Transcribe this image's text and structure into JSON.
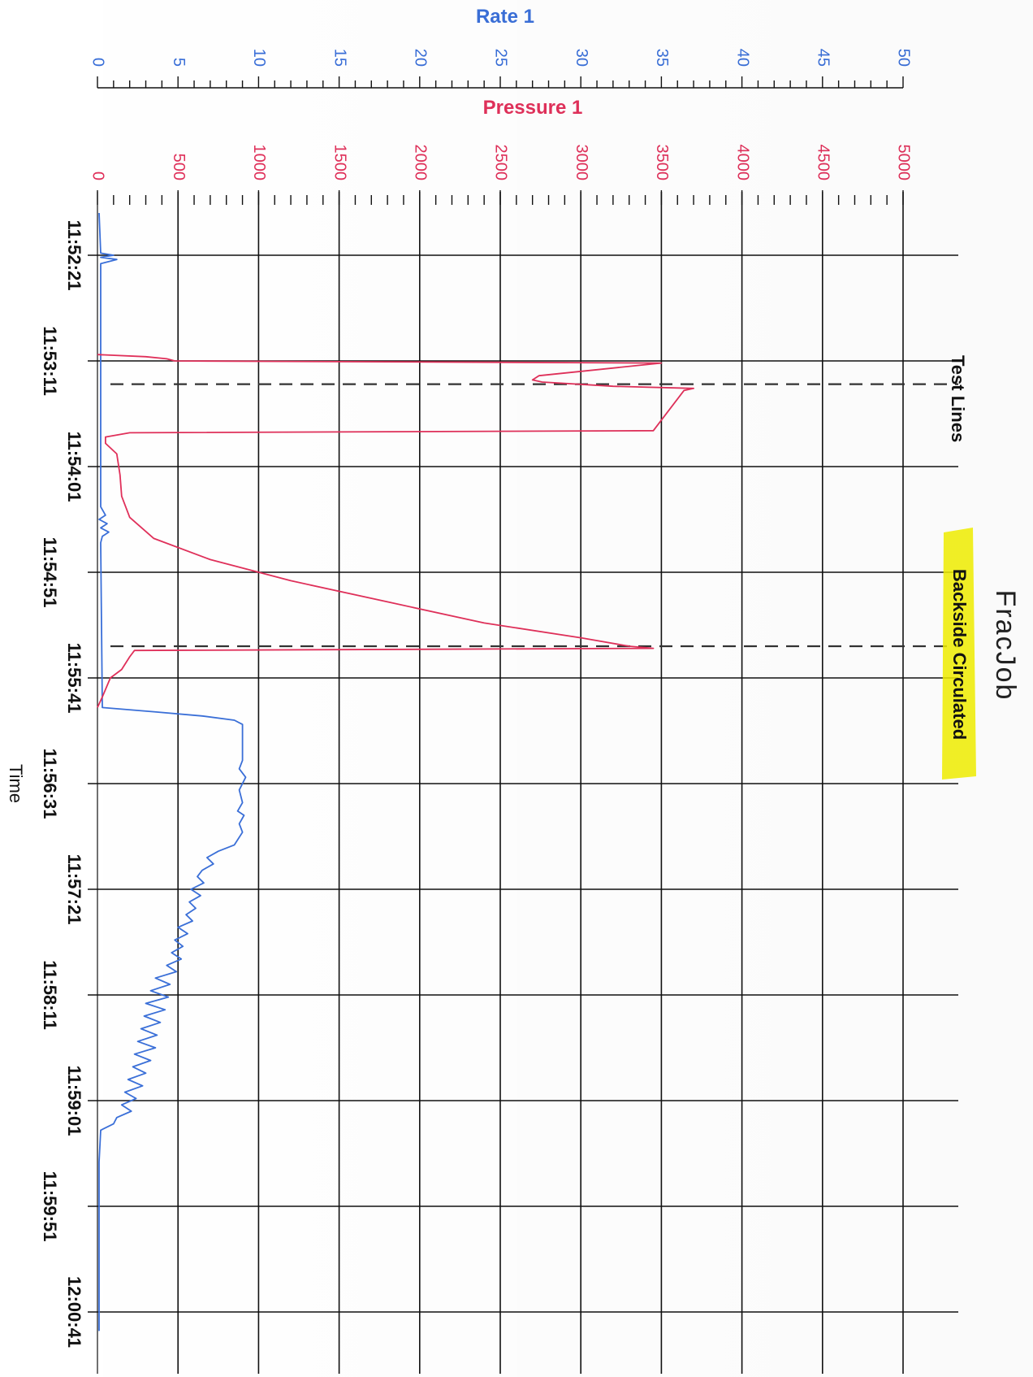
{
  "chart_data": {
    "type": "line",
    "title": "FracJob",
    "xlabel": "Time",
    "x_ticks": [
      "11:52:21",
      "11:53:11",
      "11:54:01",
      "11:54:51",
      "11:55:41",
      "11:56:31",
      "11:57:21",
      "11:58:11",
      "11:59:01",
      "11:59:51",
      "12:00:41"
    ],
    "rate_axis": {
      "label": "Rate 1",
      "min": 0,
      "max": 50,
      "ticks": [
        0,
        5,
        10,
        15,
        20,
        25,
        30,
        35,
        40,
        45,
        50
      ]
    },
    "pressure_axis": {
      "label": "Pressure 1",
      "min": 0,
      "max": 5000,
      "ticks": [
        0,
        500,
        1000,
        1500,
        2000,
        2500,
        3000,
        3500,
        4000,
        4500,
        5000
      ]
    },
    "series": [
      {
        "name": "Rate 1",
        "color": "#3a6fd8",
        "axis": "rate",
        "points": [
          [
            "11:52:01",
            0.1
          ],
          [
            "11:52:20",
            0.2
          ],
          [
            "11:52:21",
            1.0
          ],
          [
            "11:52:22",
            0.2
          ],
          [
            "11:52:23",
            1.2
          ],
          [
            "11:52:25",
            0.2
          ],
          [
            "11:53:30",
            0.2
          ],
          [
            "11:54:20",
            0.2
          ],
          [
            "11:54:24",
            0.5
          ],
          [
            "11:54:26",
            0.1
          ],
          [
            "11:54:28",
            0.6
          ],
          [
            "11:54:30",
            0.2
          ],
          [
            "11:54:32",
            0.7
          ],
          [
            "11:54:34",
            0.3
          ],
          [
            "11:54:37",
            0.2
          ],
          [
            "11:55:55",
            0.3
          ],
          [
            "11:55:57",
            3.5
          ],
          [
            "11:55:59",
            6.5
          ],
          [
            "11:56:01",
            8.5
          ],
          [
            "11:56:03",
            9.0
          ],
          [
            "11:56:10",
            9.0
          ],
          [
            "11:56:20",
            9.0
          ],
          [
            "11:56:24",
            8.8
          ],
          [
            "11:56:28",
            9.2
          ],
          [
            "11:56:34",
            8.8
          ],
          [
            "11:56:40",
            9.0
          ],
          [
            "11:56:44",
            8.7
          ],
          [
            "11:56:46",
            9.1
          ],
          [
            "11:56:50",
            8.8
          ],
          [
            "11:56:54",
            9.0
          ],
          [
            "11:57:00",
            8.5
          ],
          [
            "11:57:03",
            7.5
          ],
          [
            "11:57:06",
            6.8
          ],
          [
            "11:57:09",
            7.2
          ],
          [
            "11:57:12",
            6.5
          ],
          [
            "11:57:15",
            6.2
          ],
          [
            "11:57:18",
            6.6
          ],
          [
            "11:57:21",
            5.8
          ],
          [
            "11:57:24",
            6.4
          ],
          [
            "11:57:27",
            5.7
          ],
          [
            "11:57:30",
            6.1
          ],
          [
            "11:57:33",
            5.5
          ],
          [
            "11:57:36",
            5.9
          ],
          [
            "11:57:39",
            5.0
          ],
          [
            "11:57:42",
            5.6
          ],
          [
            "11:57:45",
            4.8
          ],
          [
            "11:57:48",
            5.3
          ],
          [
            "11:57:51",
            4.6
          ],
          [
            "11:57:54",
            5.2
          ],
          [
            "11:57:57",
            4.3
          ],
          [
            "11:58:00",
            4.9
          ],
          [
            "11:58:03",
            3.6
          ],
          [
            "11:58:06",
            4.5
          ],
          [
            "11:58:09",
            3.3
          ],
          [
            "11:58:12",
            4.4
          ],
          [
            "11:58:15",
            3.0
          ],
          [
            "11:58:18",
            4.2
          ],
          [
            "11:58:21",
            2.9
          ],
          [
            "11:58:24",
            3.9
          ],
          [
            "11:58:27",
            2.7
          ],
          [
            "11:58:30",
            3.7
          ],
          [
            "11:58:33",
            2.5
          ],
          [
            "11:58:36",
            3.6
          ],
          [
            "11:58:39",
            2.3
          ],
          [
            "11:58:42",
            3.3
          ],
          [
            "11:58:45",
            2.2
          ],
          [
            "11:58:48",
            3.0
          ],
          [
            "11:58:51",
            1.9
          ],
          [
            "11:58:54",
            2.8
          ],
          [
            "11:58:57",
            1.7
          ],
          [
            "11:59:00",
            2.4
          ],
          [
            "11:59:03",
            1.5
          ],
          [
            "11:59:06",
            2.1
          ],
          [
            "11:59:09",
            1.2
          ],
          [
            "11:59:12",
            1.0
          ],
          [
            "11:59:15",
            0.2
          ],
          [
            "11:59:30",
            0.1
          ],
          [
            "12:00:41",
            0.1
          ],
          [
            "12:00:50",
            0.1
          ]
        ]
      },
      {
        "name": "Pressure 1",
        "color": "#e0305a",
        "axis": "pressure",
        "points": [
          [
            "11:53:08",
            0.0
          ],
          [
            "11:53:09",
            300.0
          ],
          [
            "11:53:10",
            430.0
          ],
          [
            "11:53:11",
            480.0
          ],
          [
            "11:53:12",
            3500.0
          ],
          [
            "11:53:18",
            2740.0
          ],
          [
            "11:53:20",
            2700.0
          ],
          [
            "11:53:21",
            2760.0
          ],
          [
            "11:53:23",
            3200.0
          ],
          [
            "11:53:24",
            3700.0
          ],
          [
            "11:53:25",
            3640.0
          ],
          [
            "11:53:44",
            3450.0
          ],
          [
            "11:53:45",
            200.0
          ],
          [
            "11:53:47",
            50.0
          ],
          [
            "11:53:50",
            50.0
          ],
          [
            "11:53:55",
            120.0
          ],
          [
            "11:54:05",
            140.0
          ],
          [
            "11:54:15",
            150.0
          ],
          [
            "11:54:25",
            200.0
          ],
          [
            "11:54:35",
            350.0
          ],
          [
            "11:54:45",
            700.0
          ],
          [
            "11:54:55",
            1200.0
          ],
          [
            "11:55:05",
            1800.0
          ],
          [
            "11:55:15",
            2400.0
          ],
          [
            "11:55:22",
            3000.0
          ],
          [
            "11:55:26",
            3300.0
          ],
          [
            "11:55:27",
            3450.0
          ],
          [
            "11:55:28",
            230.0
          ],
          [
            "11:55:31",
            200.0
          ],
          [
            "11:55:37",
            150.0
          ],
          [
            "11:55:41",
            80.0
          ],
          [
            "11:55:50",
            30.0
          ],
          [
            "11:55:55",
            0.0
          ]
        ]
      }
    ],
    "annotations": [
      {
        "label": "Test Lines",
        "time": "11:53:22"
      },
      {
        "label": "Backside Circulated",
        "time": "11:55:26",
        "highlight": "#f2f000"
      }
    ],
    "grid": true
  }
}
